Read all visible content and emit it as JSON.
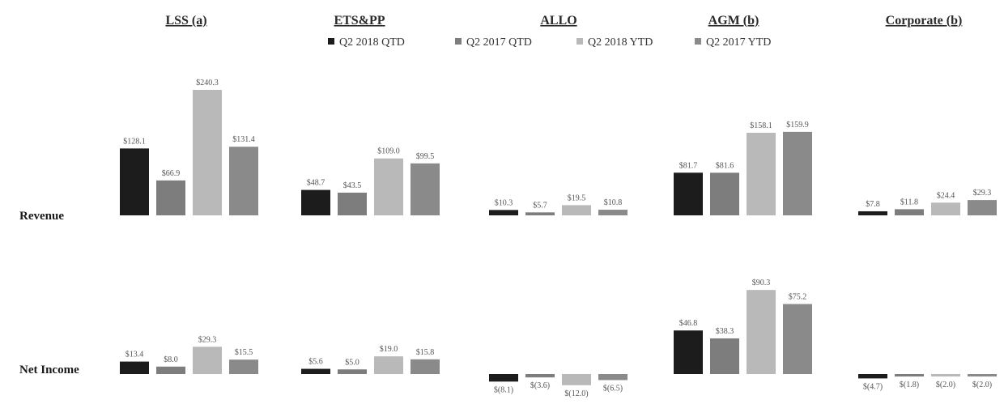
{
  "chart_data": {
    "type": "bar",
    "segments": [
      "LSS (a)",
      "ETS&PP",
      "ALLO",
      "AGM (b)",
      "Corporate (b)"
    ],
    "series": [
      {
        "name": "Q2   2018 QTD",
        "color": "#1c1c1c"
      },
      {
        "name": "Q2   2017 QTD",
        "color": "#7d7d7d"
      },
      {
        "name": "Q2   2018 YTD",
        "color": "#b9b9b9"
      },
      {
        "name": "Q2   2017 YTD",
        "color": "#8a8a8a"
      }
    ],
    "rows": [
      {
        "label": "Revenue",
        "values": [
          [
            128.1,
            66.9,
            240.3,
            131.4
          ],
          [
            48.7,
            43.5,
            109.0,
            99.5
          ],
          [
            10.3,
            5.7,
            19.5,
            10.8
          ],
          [
            81.7,
            81.6,
            158.1,
            159.9
          ],
          [
            7.8,
            11.8,
            24.4,
            29.3
          ]
        ],
        "labels": [
          [
            "$128.1",
            "$66.9",
            "$240.3",
            "$131.4"
          ],
          [
            "$48.7",
            "$43.5",
            "$109.0",
            "$99.5"
          ],
          [
            "$10.3",
            "$5.7",
            "$19.5",
            "$10.8"
          ],
          [
            "$81.7",
            "$81.6",
            "$158.1",
            "$159.9"
          ],
          [
            "$7.8",
            "$11.8",
            "$24.4",
            "$29.3"
          ]
        ]
      },
      {
        "label": "Net Income",
        "values": [
          [
            13.4,
            8.0,
            29.3,
            15.5
          ],
          [
            5.6,
            5.0,
            19.0,
            15.8
          ],
          [
            -8.1,
            -3.6,
            -12.0,
            -6.5
          ],
          [
            46.8,
            38.3,
            90.3,
            75.2
          ],
          [
            -4.7,
            -1.8,
            -2.0,
            -2.0
          ]
        ],
        "labels": [
          [
            "$13.4",
            "$8.0",
            "$29.3",
            "$15.5"
          ],
          [
            "$5.6",
            "$5.0",
            "$19.0",
            "$15.8"
          ],
          [
            "$(8.1)",
            "$(3.6)",
            "$(12.0)",
            "$(6.5)"
          ],
          [
            "$46.8",
            "$38.3",
            "$90.3",
            "$75.2"
          ],
          [
            "$(4.7)",
            "$(1.8)",
            "$(2.0)",
            "$(2.0)"
          ]
        ]
      }
    ]
  }
}
